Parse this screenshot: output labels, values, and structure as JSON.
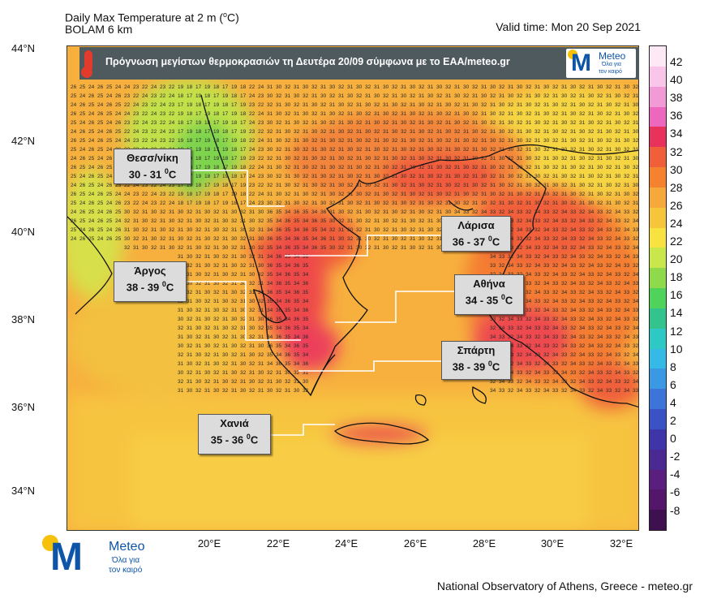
{
  "header": {
    "title_line1": "Daily Max Temperature at 2 m (",
    "title_unit_sup": "o",
    "title_unit_end": "C)",
    "title_line2": "BOLAM 6 km",
    "valid_time": "Valid time: Mon 20 Sep 2021"
  },
  "banner": {
    "text": "Πρόγνωση μεγίστων θερμοκρασιών  τη Δευτέρα 20/09 σύμφωνα με το ΕΑΑ/meteo.gr",
    "icon": "thermometer-icon"
  },
  "logo": {
    "word": "Meteo",
    "sub1": "Όλα για",
    "sub2": "τον καιρό"
  },
  "axes": {
    "lat_labels": [
      "44°N",
      "42°N",
      "40°N",
      "38°N",
      "36°N",
      "34°N"
    ],
    "lon_labels": [
      "20°E",
      "22°E",
      "24°E",
      "26°E",
      "28°E",
      "30°E",
      "32°E"
    ]
  },
  "colorbar": {
    "labels": [
      "42",
      "40",
      "38",
      "36",
      "34",
      "32",
      "30",
      "28",
      "26",
      "24",
      "22",
      "20",
      "18",
      "16",
      "14",
      "12",
      "10",
      "8",
      "6",
      "4",
      "2",
      "0",
      "-2",
      "-4",
      "-6",
      "-8"
    ],
    "colors": [
      "#fde8f6",
      "#f9c6ea",
      "#f29ad6",
      "#ec67bd",
      "#e8325c",
      "#f05f3a",
      "#f4822f",
      "#f6a83a",
      "#f7c53c",
      "#f8e23f",
      "#c9e64a",
      "#8fda4a",
      "#4fd35a",
      "#33c48e",
      "#2ec9c4",
      "#35b9e6",
      "#3b98e3",
      "#3d74d9",
      "#3b52c7",
      "#3e36a8",
      "#4a2a92",
      "#5a1f7e",
      "#54166b",
      "#3e1050"
    ]
  },
  "callouts": [
    {
      "city": "Θεσσ/νίκη",
      "range": "30 - 31"
    },
    {
      "city": "Λάρισα",
      "range": "36 - 37"
    },
    {
      "city": "Άργος",
      "range": "38 - 39"
    },
    {
      "city": "Αθήνα",
      "range": "34 - 35"
    },
    {
      "city": "Σπάρτη",
      "range": "38 - 39"
    },
    {
      "city": "Χανιά",
      "range": "35 - 36"
    }
  ],
  "callout_unit_sup": "0",
  "callout_unit": "C",
  "credit": "National Observatory of Athens, Greece - meteo.gr"
}
